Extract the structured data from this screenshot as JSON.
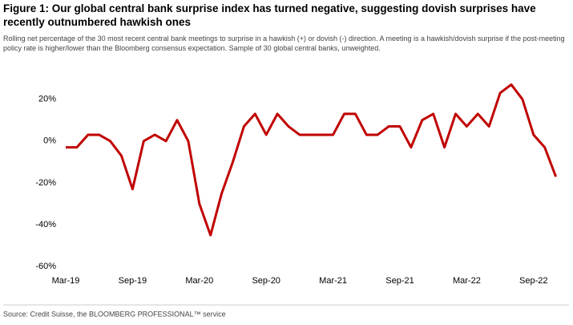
{
  "title": "Figure 1: Our global central bank surprise index has turned negative, suggesting dovish surprises have recently outnumbered hawkish ones",
  "subtitle": "Rolling net percentage of the 30 most recent central bank meetings to surprise in a hawkish (+) or dovish (-) direction. A meeting is a hawkish/dovish surprise if the post-meeting policy rate is higher/lower than the Bloomberg consensus expectation. Sample of 30 global central banks, unweighted.",
  "source": "Source: Credit Suisse, the BLOOMBERG PROFESSIONAL™ service",
  "chart_data": {
    "type": "line",
    "categories": [
      "Mar-19",
      null,
      null,
      null,
      null,
      null,
      "Sep-19",
      null,
      null,
      null,
      null,
      null,
      "Mar-20",
      null,
      null,
      null,
      null,
      null,
      "Sep-20",
      null,
      null,
      null,
      null,
      null,
      "Mar-21",
      null,
      null,
      null,
      null,
      null,
      "Sep-21",
      null,
      null,
      null,
      null,
      null,
      "Mar-22",
      null,
      null,
      null,
      null,
      null,
      "Sep-22",
      null,
      null
    ],
    "series": [
      {
        "color": "#c00000",
        "values": [
          -3,
          -3,
          3,
          3,
          0,
          -7,
          -23,
          0,
          3,
          0,
          10,
          0,
          -30,
          -45,
          -25,
          -10,
          7,
          13,
          3,
          13,
          7,
          3,
          3,
          3,
          3,
          13,
          13,
          3,
          3,
          7,
          7,
          -3,
          10,
          13,
          -3,
          13,
          7,
          13,
          7,
          23,
          27,
          20,
          3,
          -3,
          -17
        ]
      }
    ],
    "ylim": [
      -63,
      31
    ],
    "yticks": [
      {
        "value": 20,
        "label": "20%"
      },
      {
        "value": 0,
        "label": "0%"
      },
      {
        "value": -20,
        "label": "-20%"
      },
      {
        "value": -40,
        "label": "-40%"
      },
      {
        "value": -60,
        "label": "-60%"
      }
    ],
    "grid": false
  }
}
